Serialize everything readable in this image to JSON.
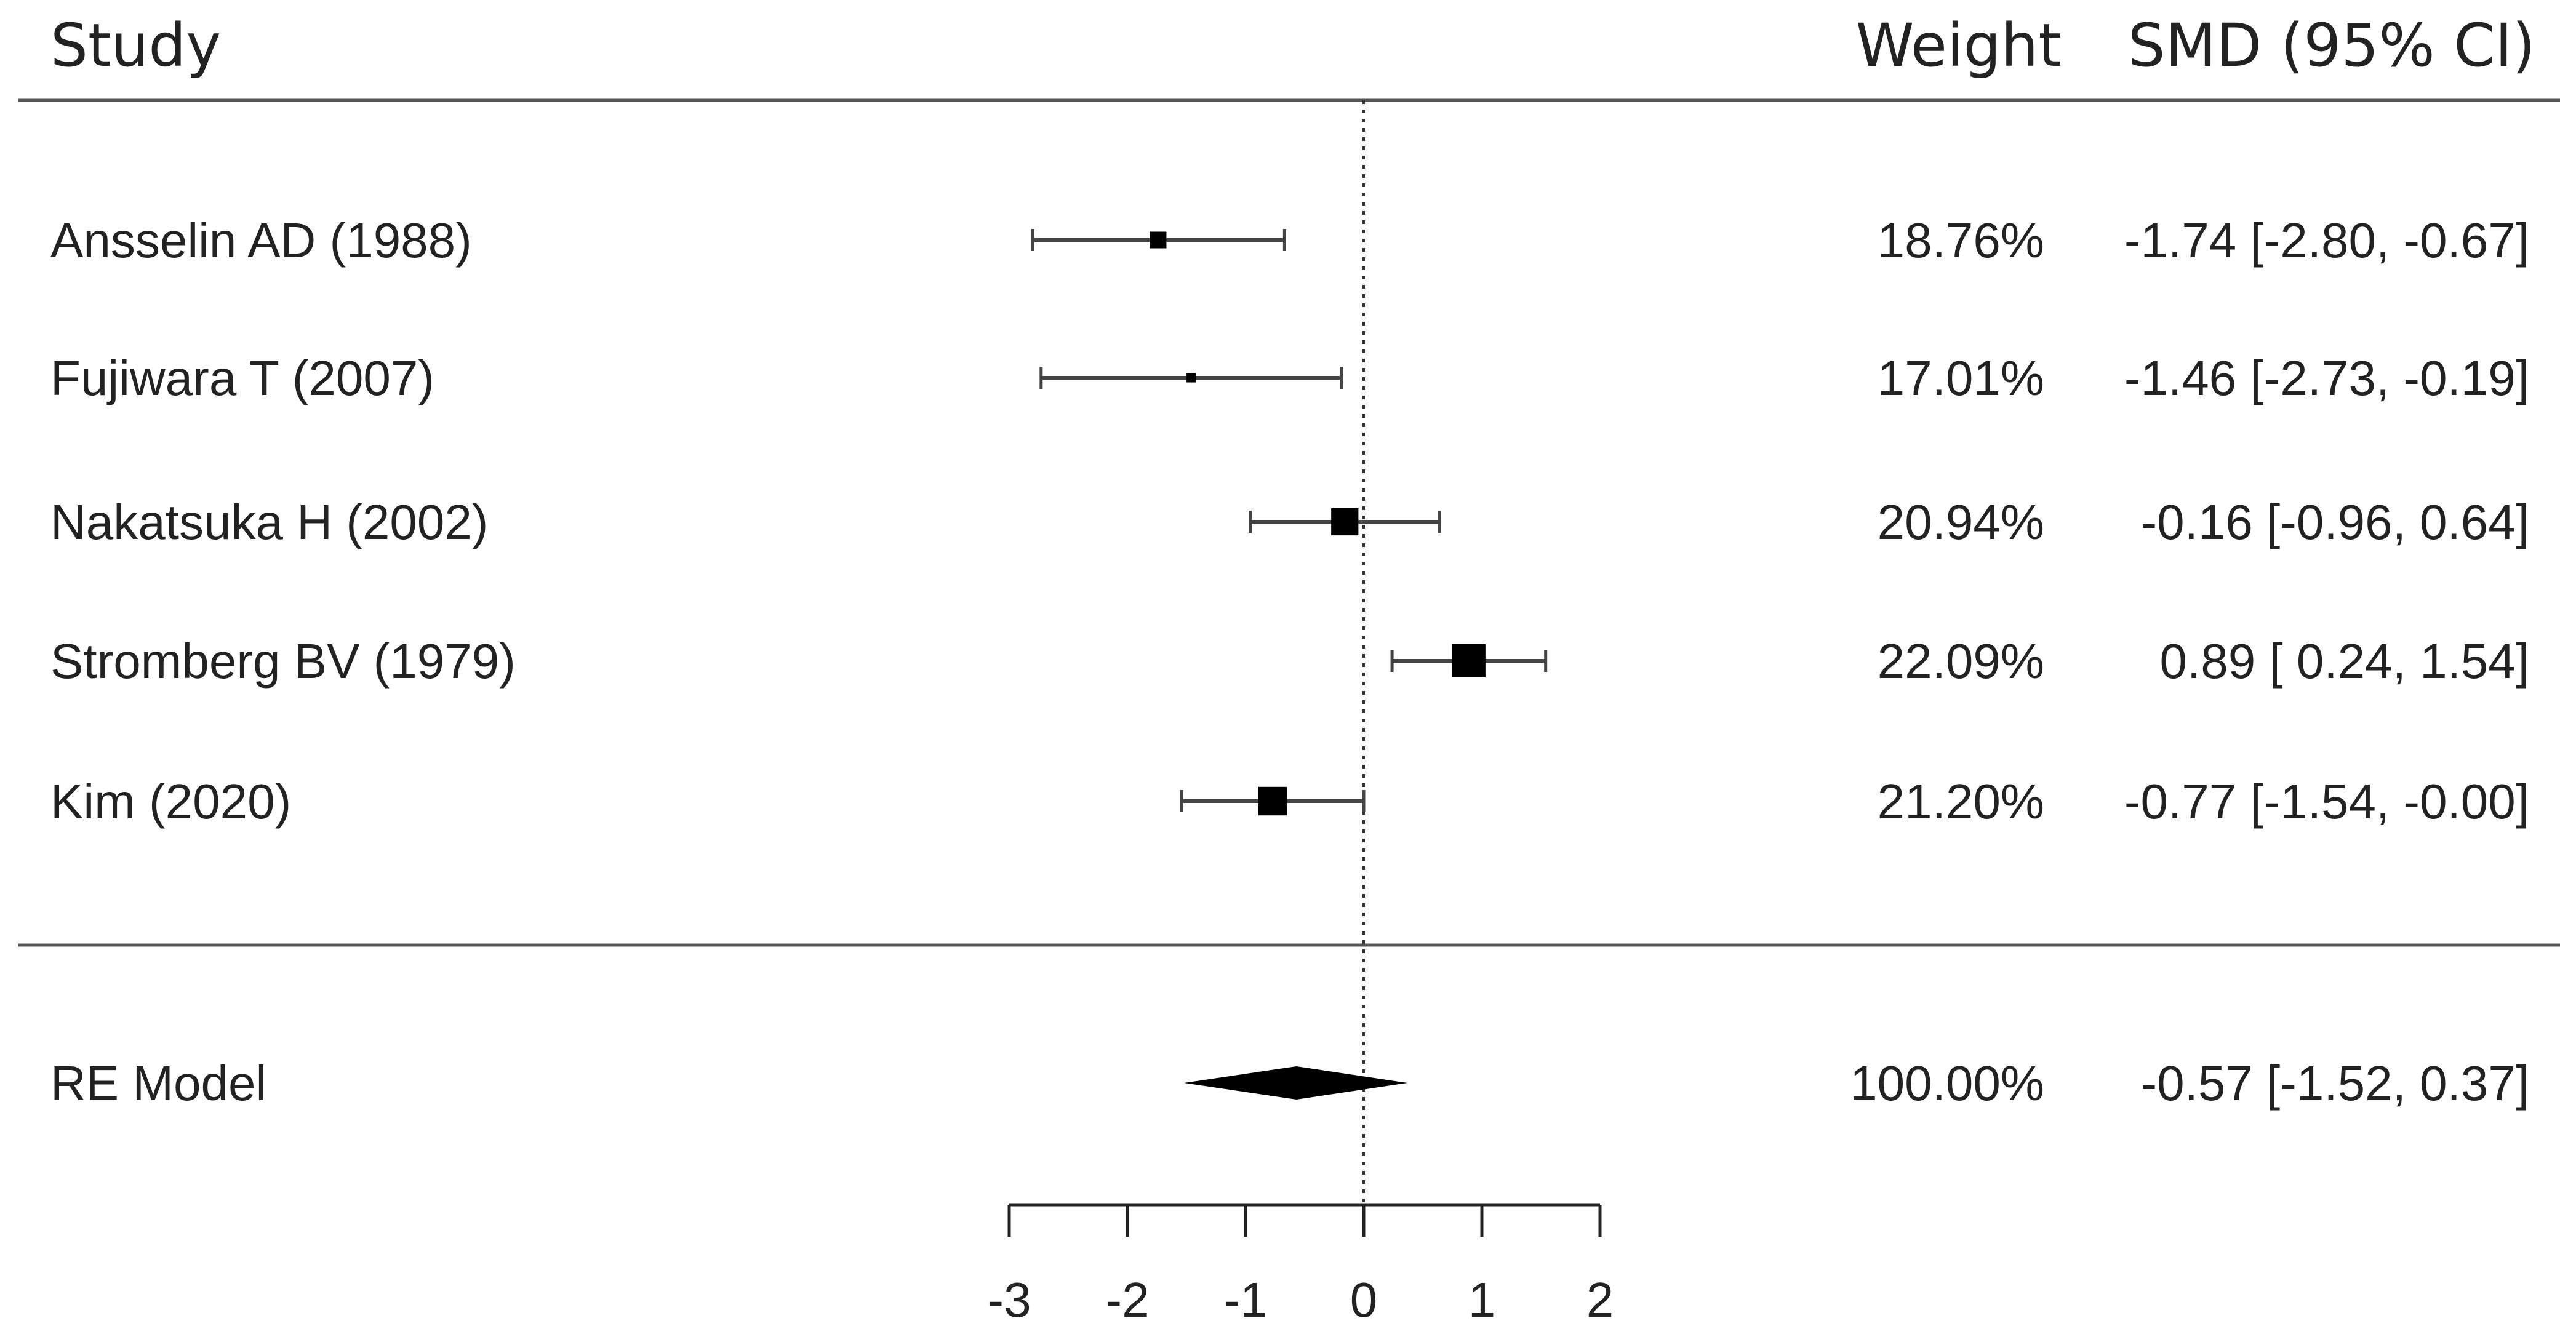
{
  "headers": {
    "study": "Study",
    "weight": "Weight",
    "smd": "SMD (95% CI)"
  },
  "chart_data": {
    "type": "forest",
    "xlim": [
      -3,
      2
    ],
    "x_ticks": [
      -3,
      -2,
      -1,
      0,
      1,
      2
    ],
    "x_tick_labels": [
      "-3",
      "-2",
      "-1",
      "0",
      "1",
      "2"
    ],
    "reference_line": 0,
    "studies": [
      {
        "label": "Ansselin AD (1988)",
        "weight": 18.76,
        "weight_text": "18.76%",
        "estimate": -1.74,
        "ci_low": -2.8,
        "ci_high": -0.67,
        "ci_text": "-1.74 [-2.80, -0.67]"
      },
      {
        "label": "Fujiwara T (2007)",
        "weight": 17.01,
        "weight_text": "17.01%",
        "estimate": -1.46,
        "ci_low": -2.73,
        "ci_high": -0.19,
        "ci_text": "-1.46 [-2.73, -0.19]"
      },
      {
        "label": "Nakatsuka H (2002)",
        "weight": 20.94,
        "weight_text": "20.94%",
        "estimate": -0.16,
        "ci_low": -0.96,
        "ci_high": 0.64,
        "ci_text": "-0.16 [-0.96,  0.64]"
      },
      {
        "label": "Stromberg BV (1979)",
        "weight": 22.09,
        "weight_text": "22.09%",
        "estimate": 0.89,
        "ci_low": 0.24,
        "ci_high": 1.54,
        "ci_text": "0.89 [ 0.24,  1.54]"
      },
      {
        "label": "Kim (2020)",
        "weight": 21.2,
        "weight_text": "21.20%",
        "estimate": -0.77,
        "ci_low": -1.54,
        "ci_high": -0.0,
        "ci_text": "-0.77 [-1.54, -0.00]"
      }
    ],
    "summary": {
      "label": "RE Model",
      "weight": 100.0,
      "weight_text": "100.00%",
      "estimate": -0.57,
      "ci_low": -1.52,
      "ci_high": 0.37,
      "ci_text": "-0.57 [-1.52,  0.37]"
    }
  }
}
